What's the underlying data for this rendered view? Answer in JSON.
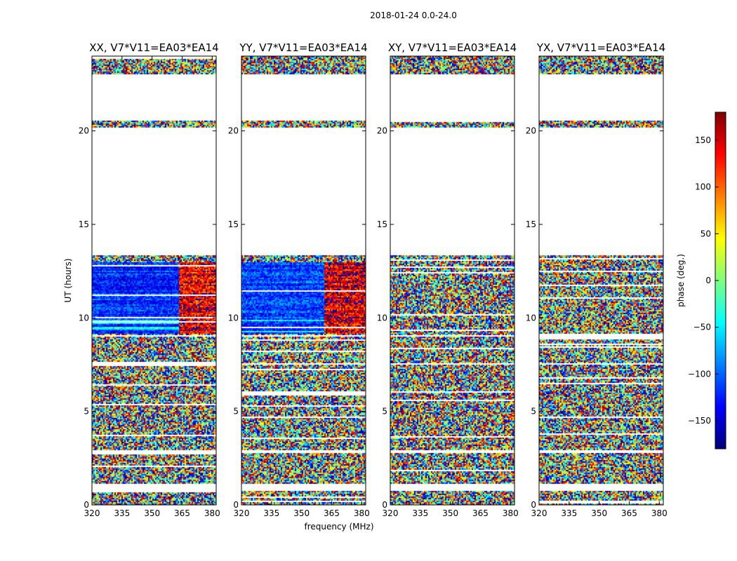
{
  "chart_data": {
    "type": "heatmap",
    "suptitle": "2018-01-24 0.0-24.0",
    "xlabel": "frequency (MHz)",
    "ylabel": "UT (hours)",
    "xlim": [
      320,
      382
    ],
    "ylim": [
      0,
      24
    ],
    "xticks": [
      320,
      335,
      350,
      365,
      380
    ],
    "yticks": [
      0,
      5,
      10,
      15,
      20
    ],
    "colorbar": {
      "label": "phase (deg.)",
      "range": [
        -180,
        180
      ],
      "ticks": [
        -150,
        -100,
        -50,
        0,
        50,
        100,
        150
      ],
      "tick_labels": [
        "−150",
        "−100",
        "−50",
        "0",
        "50",
        "100",
        "150"
      ],
      "colormap": "jet",
      "colors": [
        "#00007f",
        "#0000ff",
        "#007fff",
        "#00ffff",
        "#7fff7f",
        "#ffff00",
        "#ff7f00",
        "#ff0000",
        "#7f0000"
      ]
    },
    "panels": [
      {
        "title": "XX, V7*V11=EA03*EA14",
        "coherent": true,
        "phase_low": -120,
        "phase_high": 140,
        "split_freq": 363
      },
      {
        "title": "YY, V7*V11=EA03*EA14",
        "coherent": true,
        "phase_low": -110,
        "phase_high": 150,
        "split_freq": 361
      },
      {
        "title": "XY, V7*V11=EA03*EA14",
        "coherent": false
      },
      {
        "title": "YX, V7*V11=EA03*EA14",
        "coherent": false
      }
    ],
    "data_ut_ranges": [
      [
        0.0,
        0.8
      ],
      [
        1.2,
        2.8
      ],
      [
        3.0,
        7.5
      ],
      [
        7.6,
        9.0
      ],
      [
        9.1,
        13.4
      ],
      [
        20.2,
        20.6
      ],
      [
        23.1,
        24.0
      ]
    ],
    "coherent_ut_range": [
      9.2,
      13.0
    ]
  }
}
